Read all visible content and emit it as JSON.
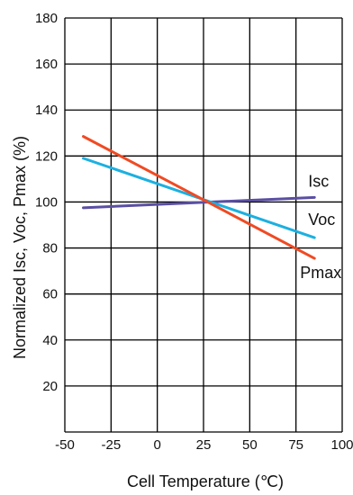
{
  "chart_data": {
    "type": "line",
    "title": "",
    "xlabel": "Cell Temperature (℃)",
    "ylabel": "Normalized Isc, Voc, Pmax (%)",
    "xlim": [
      -50,
      100
    ],
    "ylim": [
      0,
      180
    ],
    "x_ticks": [
      -50,
      -25,
      0,
      25,
      50,
      75,
      100
    ],
    "y_ticks": [
      20,
      40,
      60,
      80,
      100,
      120,
      140,
      160,
      180
    ],
    "grid": true,
    "series": [
      {
        "name": "Isc",
        "color": "#5a4fa3",
        "x": [
          -40,
          85
        ],
        "y": [
          97.5,
          102
        ]
      },
      {
        "name": "Voc",
        "color": "#1cb0e0",
        "x": [
          -40,
          85
        ],
        "y": [
          119,
          84.5
        ]
      },
      {
        "name": "Pmax",
        "color": "#f04a23",
        "x": [
          -40,
          85
        ],
        "y": [
          128.5,
          75.5
        ]
      }
    ]
  }
}
